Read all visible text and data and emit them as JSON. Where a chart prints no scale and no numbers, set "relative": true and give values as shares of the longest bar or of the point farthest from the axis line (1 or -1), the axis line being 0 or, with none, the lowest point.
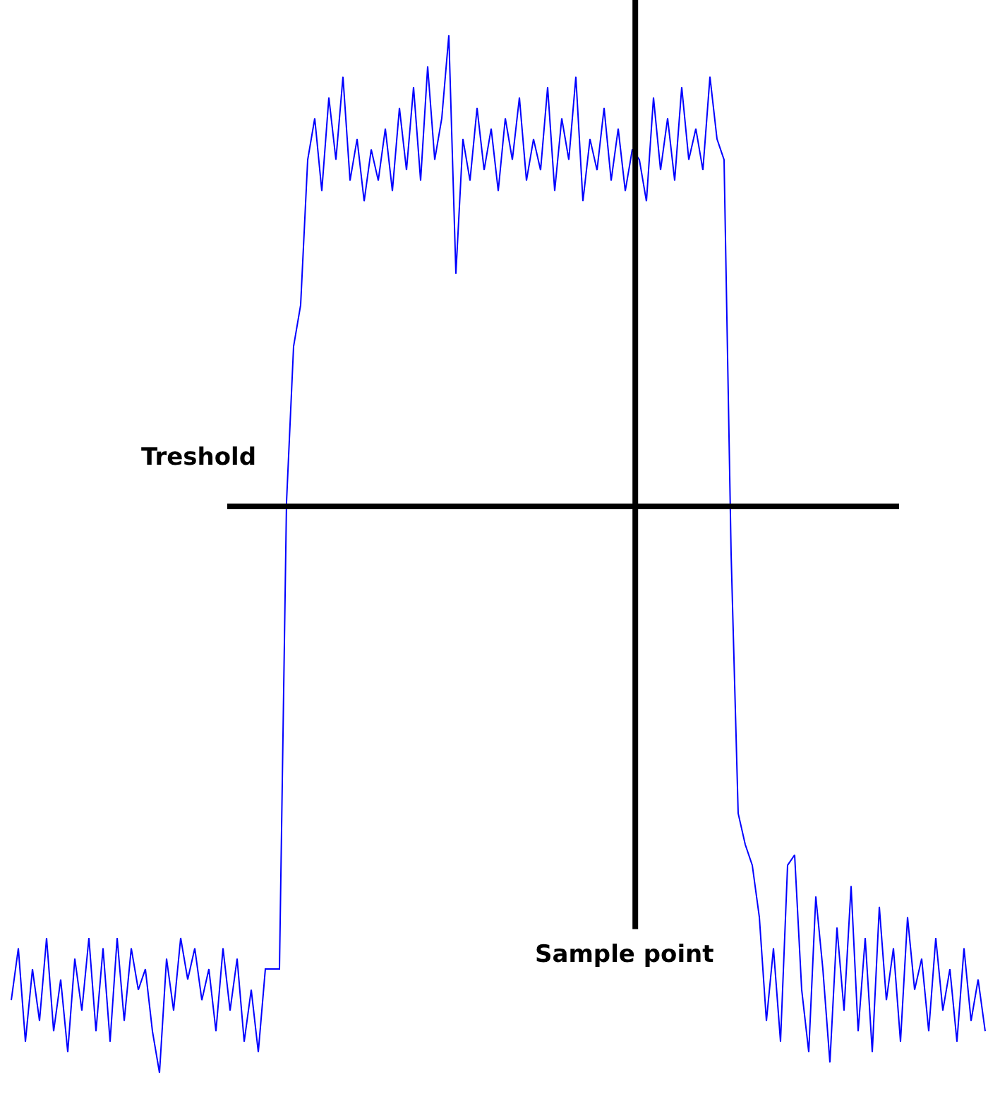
{
  "chart_data": {
    "type": "line",
    "relative": true,
    "marker": "none",
    "line_style": "solid",
    "categories": [
      null,
      null,
      null,
      null,
      null,
      null,
      null,
      null,
      null,
      null,
      null,
      null,
      null,
      null,
      null,
      null,
      null,
      null,
      null,
      null,
      null,
      null,
      null,
      null,
      null,
      null,
      null,
      null,
      null,
      null,
      null,
      null,
      null,
      null,
      null,
      null,
      null,
      null,
      null,
      null,
      null,
      null,
      null,
      null,
      null,
      null,
      null,
      null,
      null,
      null,
      null,
      null,
      null,
      null,
      null,
      null,
      null,
      null,
      null,
      null,
      null,
      null,
      null,
      null,
      null,
      null,
      null,
      null,
      null,
      null,
      null,
      null,
      null,
      null,
      null,
      null,
      null,
      null,
      null,
      null,
      null,
      null,
      null,
      null,
      null,
      null,
      null,
      null,
      null,
      null,
      null,
      null,
      null,
      null,
      null,
      null,
      null,
      null,
      null,
      null,
      null,
      null,
      null,
      null,
      null,
      null,
      null,
      null,
      null,
      null,
      null,
      null,
      null,
      null,
      null,
      null,
      null,
      null,
      null,
      null,
      null,
      null,
      null,
      null,
      null,
      null,
      null,
      null,
      null,
      null,
      null,
      null,
      null,
      null,
      null,
      null,
      null,
      null,
      null
    ],
    "series": [
      {
        "color": "#0000ff",
        "values": [
          0.07,
          0.12,
          0.03,
          0.1,
          0.05,
          0.13,
          0.04,
          0.09,
          0.02,
          0.11,
          0.06,
          0.13,
          0.04,
          0.12,
          0.03,
          0.13,
          0.05,
          0.12,
          0.08,
          0.1,
          0.04,
          0.0,
          0.11,
          0.06,
          0.13,
          0.09,
          0.12,
          0.07,
          0.1,
          0.04,
          0.12,
          0.06,
          0.11,
          0.03,
          0.08,
          0.02,
          0.1,
          0.1,
          0.1,
          0.55,
          0.7,
          0.74,
          0.88,
          0.92,
          0.85,
          0.94,
          0.88,
          0.96,
          0.86,
          0.9,
          0.84,
          0.89,
          0.86,
          0.91,
          0.85,
          0.93,
          0.87,
          0.95,
          0.86,
          0.97,
          0.88,
          0.92,
          1.0,
          0.77,
          0.9,
          0.86,
          0.93,
          0.87,
          0.91,
          0.85,
          0.92,
          0.88,
          0.94,
          0.86,
          0.9,
          0.87,
          0.95,
          0.85,
          0.92,
          0.88,
          0.96,
          0.84,
          0.9,
          0.87,
          0.93,
          0.86,
          0.91,
          0.85,
          0.89,
          0.88,
          0.84,
          0.94,
          0.87,
          0.92,
          0.86,
          0.95,
          0.88,
          0.91,
          0.87,
          0.96,
          0.9,
          0.88,
          0.5,
          0.25,
          0.22,
          0.2,
          0.15,
          0.05,
          0.12,
          0.03,
          0.2,
          0.21,
          0.08,
          0.02,
          0.17,
          0.1,
          0.01,
          0.14,
          0.06,
          0.18,
          0.04,
          0.13,
          0.02,
          0.16,
          0.07,
          0.12,
          0.03,
          0.15,
          0.08,
          0.11,
          0.04,
          0.13,
          0.06,
          0.1,
          0.03,
          0.12,
          0.05,
          0.09,
          0.04
        ]
      }
    ],
    "ref_lines": [
      {
        "axis": "y",
        "value": 0.546,
        "label": "Treshold",
        "color": "#000000"
      }
    ],
    "annotations": [
      "Sample point"
    ]
  }
}
